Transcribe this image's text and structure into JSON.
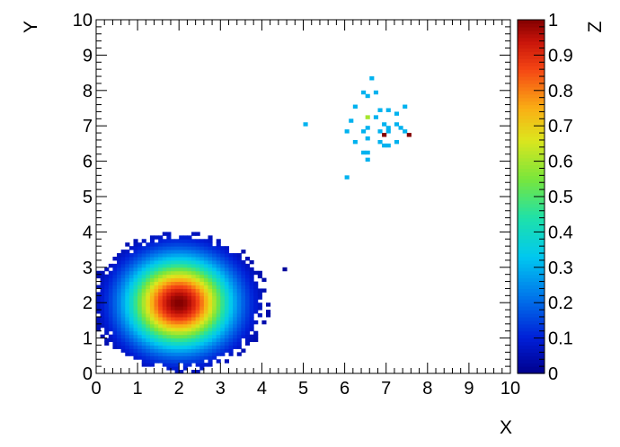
{
  "chart_data": {
    "type": "heatmap",
    "title": "",
    "xlabel": "X",
    "ylabel": "Y",
    "zlabel": "Z",
    "xlim": [
      0,
      10
    ],
    "ylim": [
      0,
      10
    ],
    "zlim": [
      0,
      1
    ],
    "x_ticks": [
      "0",
      "1",
      "2",
      "3",
      "4",
      "5",
      "6",
      "7",
      "8",
      "9",
      "10"
    ],
    "y_ticks": [
      "0",
      "1",
      "2",
      "3",
      "4",
      "5",
      "6",
      "7",
      "8",
      "9",
      "10"
    ],
    "z_ticks": [
      "0",
      "0.1",
      "0.2",
      "0.3",
      "0.4",
      "0.5",
      "0.6",
      "0.7",
      "0.8",
      "0.9",
      "1"
    ],
    "bins": [
      100,
      100
    ],
    "colorscale": "rainbow (dark blue to dark red)",
    "grid": false,
    "components": [
      {
        "name": "",
        "kind": "gaussian blob",
        "center": [
          2.0,
          2.0
        ],
        "sigma": 0.85,
        "peak_z": 1.0,
        "min_z": 0.02,
        "edge_radius": [
          2.2,
          2.0
        ]
      },
      {
        "name": "",
        "kind": "sparse cluster",
        "cells": [
          [
            6.65,
            8.3,
            0.3
          ],
          [
            6.4,
            7.95,
            0.3
          ],
          [
            6.7,
            7.95,
            0.3
          ],
          [
            6.6,
            7.8,
            0.3
          ],
          [
            6.3,
            7.5,
            0.3
          ],
          [
            6.8,
            7.4,
            0.3
          ],
          [
            6.6,
            7.25,
            0.6
          ],
          [
            6.75,
            7.2,
            0.3
          ],
          [
            7.1,
            7.4,
            0.3
          ],
          [
            7.4,
            7.5,
            0.3
          ],
          [
            7.2,
            7.3,
            0.3
          ],
          [
            6.15,
            7.15,
            0.3
          ],
          [
            6.9,
            7.1,
            0.3
          ],
          [
            7.25,
            7.05,
            0.3
          ],
          [
            5.05,
            7.0,
            0.3
          ],
          [
            6.6,
            6.95,
            0.3
          ],
          [
            7.0,
            6.95,
            0.3
          ],
          [
            7.3,
            6.9,
            0.3
          ],
          [
            6.05,
            6.85,
            0.3
          ],
          [
            6.45,
            6.85,
            0.3
          ],
          [
            6.8,
            6.8,
            0.3
          ],
          [
            7.1,
            6.85,
            0.3
          ],
          [
            7.45,
            6.8,
            0.3
          ],
          [
            6.95,
            6.75,
            1.0
          ],
          [
            7.6,
            6.75,
            1.0
          ],
          [
            6.55,
            6.65,
            0.3
          ],
          [
            6.85,
            6.6,
            0.3
          ],
          [
            7.2,
            6.6,
            0.3
          ],
          [
            6.25,
            6.55,
            0.3
          ],
          [
            6.9,
            6.45,
            0.3
          ],
          [
            7.05,
            6.4,
            0.3
          ],
          [
            6.4,
            6.3,
            0.3
          ],
          [
            6.6,
            6.2,
            0.3
          ],
          [
            6.5,
            6.05,
            0.3
          ],
          [
            6.1,
            5.5,
            0.3
          ],
          [
            4.55,
            2.95,
            0.02
          ]
        ]
      }
    ]
  }
}
